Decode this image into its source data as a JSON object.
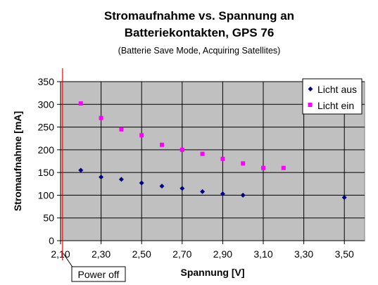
{
  "chart_data": {
    "type": "scatter",
    "title_line1": "Stromaufnahme vs. Spannung an",
    "title_line2": "Batteriekontakten, GPS 76",
    "subtitle": "(Batterie Save Mode, Acquiring Satellites)",
    "xlabel": "Spannung [V]",
    "ylabel": "Stromaufnahme [mA]",
    "xlim": [
      2.1,
      3.6
    ],
    "ylim": [
      0,
      350
    ],
    "x_ticks": [
      "2,10",
      "2,30",
      "2,50",
      "2,70",
      "2,90",
      "3,10",
      "3,30",
      "3,50"
    ],
    "x_tick_values": [
      2.1,
      2.3,
      2.5,
      2.7,
      2.9,
      3.1,
      3.3,
      3.5
    ],
    "y_ticks": [
      "0",
      "50",
      "100",
      "150",
      "200",
      "250",
      "300",
      "350"
    ],
    "y_tick_values": [
      0,
      50,
      100,
      150,
      200,
      250,
      300,
      350
    ],
    "grid": true,
    "legend_position": "top-right",
    "series": [
      {
        "name": "Licht aus",
        "color": "#000080",
        "marker": "diamond",
        "x": [
          2.2,
          2.3,
          2.4,
          2.5,
          2.6,
          2.7,
          2.8,
          2.9,
          3.0,
          3.5
        ],
        "y": [
          155,
          140,
          135,
          127,
          120,
          115,
          108,
          103,
          100,
          95
        ]
      },
      {
        "name": "Licht ein",
        "color": "#ff00ff",
        "marker": "square",
        "x": [
          2.2,
          2.3,
          2.4,
          2.5,
          2.6,
          2.7,
          2.8,
          2.9,
          3.0,
          3.1,
          3.2
        ],
        "y": [
          302,
          270,
          245,
          232,
          211,
          200,
          191,
          180,
          170,
          160,
          160
        ]
      }
    ],
    "annotation": {
      "text": "Power  off",
      "x": 2.11,
      "color": "#ff0000"
    }
  }
}
